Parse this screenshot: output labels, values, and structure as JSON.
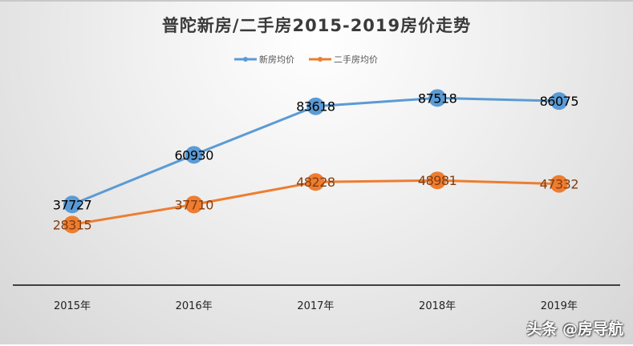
{
  "chart_data": {
    "type": "line",
    "title": "普陀新房/二手房2015-2019房价走势",
    "categories": [
      "2015年",
      "2016年",
      "2017年",
      "2018年",
      "2019年"
    ],
    "series": [
      {
        "name": "新房均价",
        "values": [
          37727,
          60930,
          83618,
          87518,
          86075
        ],
        "color": "#5b9bd5",
        "label_color": "#000000"
      },
      {
        "name": "二手房均价",
        "values": [
          28315,
          37710,
          48228,
          48981,
          47332
        ],
        "color": "#ed7d31",
        "label_color": "#843c0c"
      }
    ],
    "ylim": [
      0,
      100000
    ],
    "grid": false,
    "legend": "top"
  },
  "watermark": "头条 @房导航"
}
